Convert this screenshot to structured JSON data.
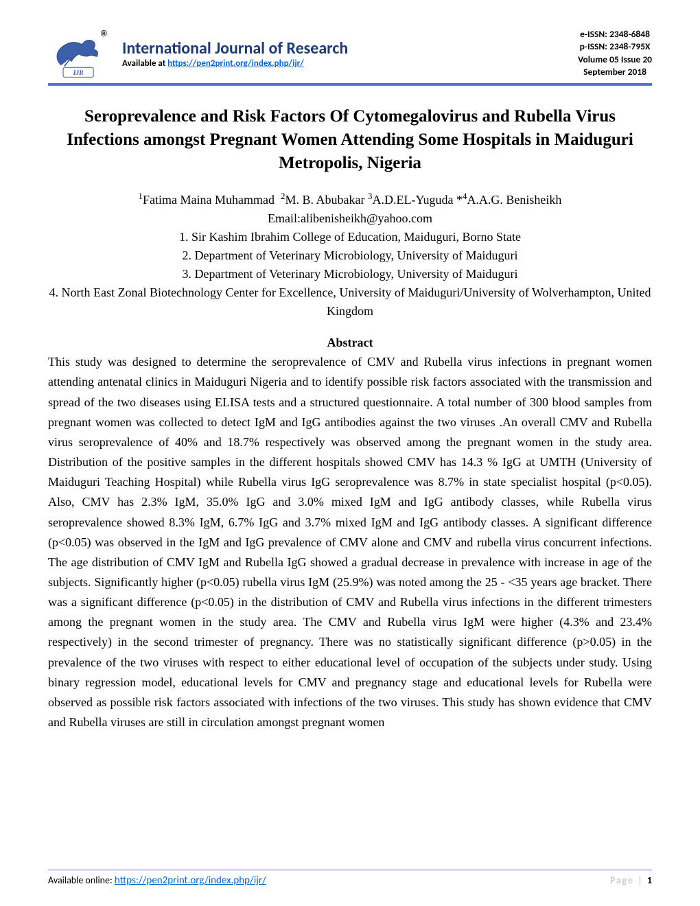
{
  "header": {
    "journal_title": "International Journal of Research",
    "availability_prefix": "Available at ",
    "availability_url": "https://pen2print.org/index.php/ijr/",
    "meta": {
      "eissn": "e-ISSN: 2348-6848",
      "pissn": "p-ISSN: 2348-795X",
      "volume": "Volume 05 Issue 20",
      "month": "September 2018"
    },
    "logo_text": "IJR",
    "reg_mark": "®"
  },
  "article": {
    "title": "Seroprevalence and Risk Factors Of Cytomegalovirus and Rubella Virus Infections amongst Pregnant Women Attending Some Hospitals in Maiduguri Metropolis, Nigeria",
    "authors_html": "<sup>1</sup>Fatima Maina Muhammad&nbsp;&nbsp;<sup>2</sup>M. B. Abubakar <sup>3</sup>A.D.EL-Yuguda *<sup>4</sup>A.A.G. Benisheikh",
    "email": "Email:alibenisheikh@yahoo.com",
    "affiliations": [
      "1. Sir Kashim Ibrahim College of Education, Maiduguri, Borno State",
      "2. Department of Veterinary Microbiology, University of Maiduguri",
      "3. Department of Veterinary Microbiology, University of Maiduguri",
      "4. North East Zonal Biotechnology Center for Excellence, University of Maiduguri/University of Wolverhampton, United Kingdom"
    ]
  },
  "abstract": {
    "heading": "Abstract",
    "body": " This study was designed to determine the seroprevalence of CMV and Rubella virus infections in pregnant women attending antenatal clinics in Maiduguri Nigeria and to identify possible risk factors associated with the transmission and spread of the two diseases using ELISA tests and a structured questionnaire. A total number of 300 blood samples from pregnant women was collected to detect IgM and IgG antibodies against the two viruses .An overall CMV and Rubella virus seroprevalence of 40% and 18.7% respectively was observed among the pregnant women in the study area. Distribution of the positive samples in the different hospitals showed CMV has 14.3 % IgG at UMTH (University of Maiduguri Teaching Hospital) while Rubella virus IgG seroprevalence was 8.7% in state specialist hospital (p<0.05). Also, CMV has 2.3% IgM, 35.0% IgG and 3.0% mixed IgM and IgG antibody classes, while Rubella virus seroprevalence showed 8.3% IgM, 6.7% IgG and 3.7% mixed IgM and IgG antibody classes. A significant difference (p<0.05) was observed in the IgM and IgG prevalence of CMV alone and CMV and rubella virus concurrent infections. The age distribution of CMV IgM and Rubella IgG showed a gradual decrease in prevalence with increase in age of the subjects. Significantly higher (p<0.05) rubella virus IgM (25.9%) was noted among the 25 - <35 years age bracket. There was a significant difference (p<0.05) in the distribution of CMV and Rubella virus infections in the different trimesters among the pregnant women in the study area. The CMV and Rubella virus IgM were higher (4.3% and 23.4% respectively) in the second trimester of pregnancy. There was no statistically significant difference (p>0.05) in the prevalence of the two viruses with respect to either educational level of occupation of the subjects under study. Using binary regression model, educational levels for CMV and pregnancy stage and educational levels for Rubella were observed as possible risk factors associated with infections of the two viruses. This study has shown evidence that CMV and Rubella viruses are still in circulation amongst pregnant women"
  },
  "footer": {
    "label": "Available online:  ",
    "url": "https://pen2print.org/index.php/ijr/",
    "page_word": "Page",
    "page_sep": " | ",
    "page_num": "1"
  },
  "colors": {
    "accent": "#4a7bd0",
    "title": "#1f3a6e",
    "link": "#0563c1",
    "faded": "#b9b9b9"
  }
}
